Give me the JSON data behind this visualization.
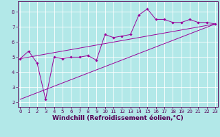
{
  "xlabel": "Windchill (Refroidissement éolien,°C)",
  "background_color": "#b2e8e8",
  "line_color": "#990099",
  "x_ticks": [
    0,
    1,
    2,
    3,
    4,
    5,
    6,
    7,
    8,
    9,
    10,
    11,
    12,
    13,
    14,
    15,
    16,
    17,
    18,
    19,
    20,
    21,
    22,
    23
  ],
  "y_ticks": [
    2,
    3,
    4,
    5,
    6,
    7,
    8
  ],
  "xlim": [
    -0.3,
    23.3
  ],
  "ylim": [
    1.7,
    8.7
  ],
  "scatter_x": [
    0,
    1,
    2,
    3,
    4,
    5,
    6,
    7,
    8,
    9,
    10,
    11,
    12,
    13,
    14,
    15,
    16,
    17,
    18,
    19,
    20,
    21,
    22,
    23
  ],
  "scatter_y": [
    4.9,
    5.4,
    4.6,
    2.2,
    5.0,
    4.9,
    5.0,
    5.0,
    5.1,
    4.8,
    6.5,
    6.3,
    6.4,
    6.5,
    7.8,
    8.2,
    7.5,
    7.5,
    7.3,
    7.3,
    7.5,
    7.3,
    7.3,
    7.2
  ],
  "line1_x": [
    0,
    23
  ],
  "line1_y": [
    4.9,
    7.2
  ],
  "line2_x": [
    0,
    23
  ],
  "line2_y": [
    2.2,
    7.2
  ],
  "grid_color": "#c8eaea",
  "tick_fontsize": 5,
  "xlabel_fontsize": 6.5,
  "xlabel_fontweight": "bold"
}
